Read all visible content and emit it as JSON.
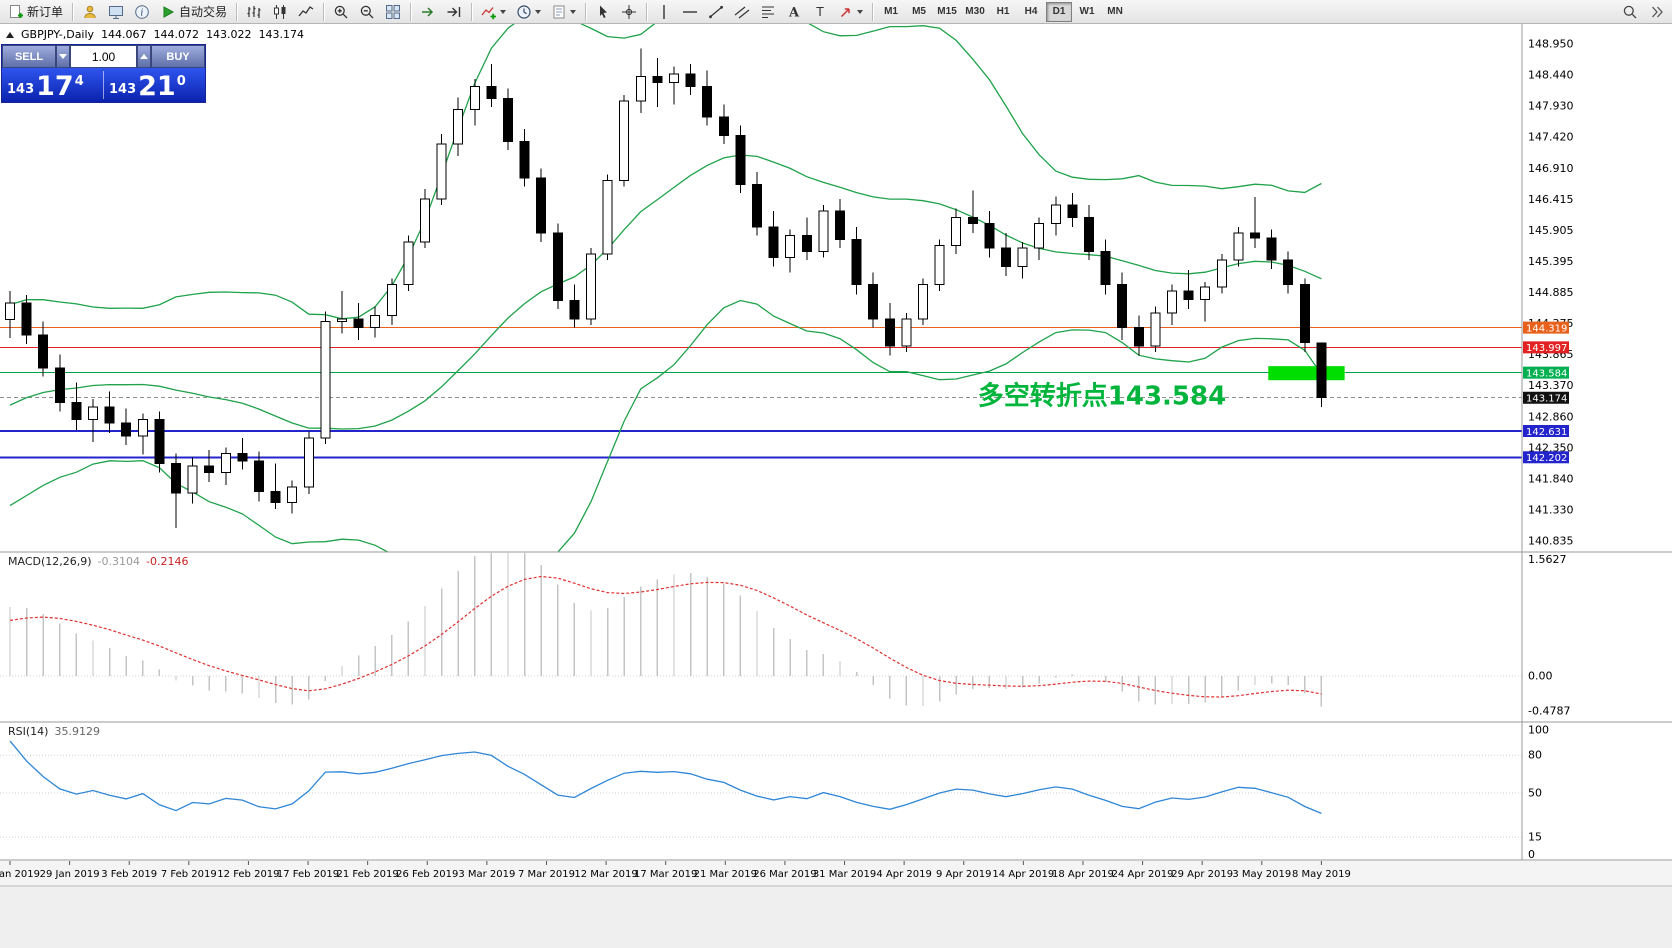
{
  "toolbar": {
    "items": [
      {
        "name": "new-order",
        "label": "新订单"
      },
      {
        "sep": true
      },
      {
        "name": "profiles"
      },
      {
        "name": "market-watch"
      },
      {
        "name": "data-window"
      },
      {
        "name": "autotrading",
        "label": "自动交易"
      },
      {
        "sep": true
      },
      {
        "name": "bar-chart"
      },
      {
        "name": "candle-chart"
      },
      {
        "name": "line-chart"
      },
      {
        "sep": true
      },
      {
        "name": "zoom-in"
      },
      {
        "name": "zoom-out"
      },
      {
        "name": "tile-windows"
      },
      {
        "sep": true
      },
      {
        "name": "auto-scroll"
      },
      {
        "name": "chart-shift"
      },
      {
        "sep": true
      },
      {
        "name": "indicators",
        "caret": true
      },
      {
        "name": "periods",
        "caret": true
      },
      {
        "name": "templates",
        "caret": true
      },
      {
        "sep": true
      },
      {
        "name": "cursor"
      },
      {
        "name": "crosshair"
      },
      {
        "sep": true
      },
      {
        "name": "vertical-line"
      },
      {
        "name": "horizontal-line"
      },
      {
        "name": "trendline"
      },
      {
        "name": "equidistant-channel"
      },
      {
        "name": "fibonacci"
      },
      {
        "name": "text"
      },
      {
        "name": "label"
      },
      {
        "name": "arrows",
        "caret": true
      },
      {
        "sep": true
      }
    ],
    "timeframes": [
      "M1",
      "M5",
      "M15",
      "M30",
      "H1",
      "H4",
      "D1",
      "W1",
      "MN"
    ],
    "active_timeframe": "D1",
    "right_items": [
      {
        "name": "search"
      },
      {
        "name": "expand"
      }
    ]
  },
  "chart": {
    "info": {
      "symbol_period": "GBPJPY-,Daily",
      "open": "144.067",
      "high": "144.072",
      "low": "143.022",
      "close": "143.174"
    },
    "trade_panel": {
      "sell_label": "SELL",
      "buy_label": "BUY",
      "volume": "1.00",
      "bid_prefix": "143",
      "bid_main": "17",
      "bid_pip": "4",
      "ask_prefix": "143",
      "ask_main": "21",
      "ask_pip": "0"
    }
  },
  "chart_data": {
    "type": "candlestick",
    "symbol": "GBPJPY-",
    "timeframe": "Daily",
    "candles": [
      [
        144.45,
        144.92,
        144.15,
        144.72
      ],
      [
        144.72,
        144.85,
        144.05,
        144.2
      ],
      [
        144.2,
        144.42,
        143.52,
        143.66
      ],
      [
        143.66,
        143.88,
        142.95,
        143.1
      ],
      [
        143.1,
        143.42,
        142.65,
        142.82
      ],
      [
        142.82,
        143.15,
        142.45,
        143.02
      ],
      [
        143.02,
        143.28,
        142.6,
        142.76
      ],
      [
        142.76,
        143.0,
        142.4,
        142.55
      ],
      [
        142.55,
        142.92,
        142.25,
        142.82
      ],
      [
        142.82,
        142.95,
        141.95,
        142.1
      ],
      [
        142.1,
        142.26,
        141.05,
        141.62
      ],
      [
        141.62,
        142.2,
        141.45,
        142.06
      ],
      [
        142.06,
        142.32,
        141.8,
        141.95
      ],
      [
        141.95,
        142.36,
        141.75,
        142.26
      ],
      [
        142.26,
        142.52,
        142.0,
        142.14
      ],
      [
        142.14,
        142.3,
        141.48,
        141.64
      ],
      [
        141.64,
        142.1,
        141.36,
        141.46
      ],
      [
        141.46,
        141.82,
        141.28,
        141.72
      ],
      [
        141.72,
        142.62,
        141.6,
        142.52
      ],
      [
        142.52,
        144.58,
        142.42,
        144.42
      ],
      [
        144.42,
        144.92,
        144.22,
        144.46
      ],
      [
        144.46,
        144.72,
        144.12,
        144.32
      ],
      [
        144.32,
        144.66,
        144.16,
        144.52
      ],
      [
        144.52,
        145.12,
        144.36,
        145.02
      ],
      [
        145.02,
        145.82,
        144.92,
        145.72
      ],
      [
        145.72,
        146.58,
        145.62,
        146.42
      ],
      [
        146.42,
        147.48,
        146.32,
        147.32
      ],
      [
        147.32,
        148.08,
        147.12,
        147.88
      ],
      [
        147.88,
        148.38,
        147.62,
        148.26
      ],
      [
        148.26,
        148.62,
        147.92,
        148.06
      ],
      [
        148.06,
        148.22,
        147.22,
        147.36
      ],
      [
        147.36,
        147.56,
        146.62,
        146.76
      ],
      [
        146.76,
        146.92,
        145.72,
        145.86
      ],
      [
        145.86,
        146.02,
        144.62,
        144.76
      ],
      [
        144.76,
        145.02,
        144.32,
        144.46
      ],
      [
        144.46,
        145.62,
        144.36,
        145.52
      ],
      [
        145.52,
        146.82,
        145.42,
        146.72
      ],
      [
        146.72,
        148.12,
        146.62,
        148.02
      ],
      [
        148.02,
        148.88,
        147.82,
        148.42
      ],
      [
        148.42,
        148.72,
        147.92,
        148.32
      ],
      [
        148.32,
        148.58,
        147.96,
        148.46
      ],
      [
        148.46,
        148.62,
        148.12,
        148.26
      ],
      [
        148.26,
        148.52,
        147.62,
        147.76
      ],
      [
        147.76,
        147.96,
        147.32,
        147.46
      ],
      [
        147.46,
        147.62,
        146.52,
        146.66
      ],
      [
        146.66,
        146.86,
        145.82,
        145.96
      ],
      [
        145.96,
        146.22,
        145.32,
        145.46
      ],
      [
        145.46,
        145.92,
        145.22,
        145.82
      ],
      [
        145.82,
        146.12,
        145.42,
        145.56
      ],
      [
        145.56,
        146.32,
        145.46,
        146.22
      ],
      [
        146.22,
        146.42,
        145.62,
        145.76
      ],
      [
        145.76,
        145.96,
        144.86,
        145.02
      ],
      [
        145.02,
        145.22,
        144.32,
        144.46
      ],
      [
        144.46,
        144.72,
        143.86,
        144.02
      ],
      [
        144.02,
        144.56,
        143.92,
        144.46
      ],
      [
        144.46,
        145.12,
        144.36,
        145.02
      ],
      [
        145.02,
        145.76,
        144.92,
        145.66
      ],
      [
        145.66,
        146.26,
        145.52,
        146.12
      ],
      [
        146.12,
        146.56,
        145.86,
        146.02
      ],
      [
        146.02,
        146.22,
        145.46,
        145.62
      ],
      [
        145.62,
        145.86,
        145.16,
        145.32
      ],
      [
        145.32,
        145.72,
        145.12,
        145.62
      ],
      [
        145.62,
        146.12,
        145.42,
        146.02
      ],
      [
        146.02,
        146.46,
        145.82,
        146.32
      ],
      [
        146.32,
        146.52,
        145.96,
        146.12
      ],
      [
        146.12,
        146.32,
        145.42,
        145.56
      ],
      [
        145.56,
        145.76,
        144.86,
        145.02
      ],
      [
        145.02,
        145.22,
        144.12,
        144.32
      ],
      [
        144.32,
        144.52,
        143.86,
        144.02
      ],
      [
        144.02,
        144.66,
        143.92,
        144.56
      ],
      [
        144.56,
        145.02,
        144.36,
        144.92
      ],
      [
        144.92,
        145.26,
        144.62,
        144.78
      ],
      [
        144.78,
        145.06,
        144.42,
        144.98
      ],
      [
        144.98,
        145.52,
        144.88,
        145.42
      ],
      [
        145.42,
        145.96,
        145.32,
        145.86
      ],
      [
        145.86,
        146.45,
        145.62,
        145.78
      ],
      [
        145.78,
        145.92,
        145.28,
        145.42
      ],
      [
        145.42,
        145.56,
        144.88,
        145.02
      ],
      [
        145.02,
        145.12,
        143.92,
        144.08
      ],
      [
        144.067,
        144.072,
        143.022,
        143.174
      ]
    ],
    "warmup_closes": [
      141.1,
      141.25,
      141.4,
      141.3,
      141.55,
      141.7,
      141.85,
      141.75,
      142.0,
      142.15,
      142.3,
      142.2,
      142.45,
      142.6,
      142.75,
      142.65,
      142.9,
      143.05,
      143.2,
      143.1,
      143.35,
      143.55,
      143.75,
      143.95,
      144.2,
      144.45
    ],
    "x_labels": [
      "24 Jan 2019",
      "29 Jan 2019",
      "3 Feb 2019",
      "7 Feb 2019",
      "12 Feb 2019",
      "17 Feb 2019",
      "21 Feb 2019",
      "26 Feb 2019",
      "3 Mar 2019",
      "7 Mar 2019",
      "12 Mar 2019",
      "17 Mar 2019",
      "21 Mar 2019",
      "26 Mar 2019",
      "31 Mar 2019",
      "4 Apr 2019",
      "9 Apr 2019",
      "14 Apr 2019",
      "18 Apr 2019",
      "24 Apr 2019",
      "29 Apr 2019",
      "3 May 2019",
      "8 May 2019"
    ],
    "price_axis_labels": [
      "148.950",
      "148.440",
      "147.930",
      "147.420",
      "146.910",
      "146.415",
      "145.905",
      "145.395",
      "144.885",
      "144.375",
      "143.865",
      "143.370",
      "142.860",
      "142.350",
      "141.840",
      "141.330",
      "140.835"
    ],
    "price_lines": [
      {
        "price": 144.319,
        "label": "144.319",
        "color": "#e8611c",
        "badge_color": "#e8611c",
        "width": 1,
        "style": "solid"
      },
      {
        "price": 143.997,
        "label": "143.997",
        "color": "#e22222",
        "badge_color": "#e22222",
        "width": 1,
        "style": "solid"
      },
      {
        "price": 143.584,
        "label": "143.584",
        "color": "#00a14b",
        "badge_color": "#00b050",
        "width": 1,
        "style": "solid"
      },
      {
        "price": 143.174,
        "label": "143.174",
        "color": "#909090",
        "badge_color": "#111111",
        "width": 1,
        "style": "dash"
      },
      {
        "price": 142.631,
        "label": "142.631",
        "color": "#2424cc",
        "badge_color": "#2424cc",
        "width": 2,
        "style": "solid"
      },
      {
        "price": 142.202,
        "label": "142.202",
        "color": "#2424cc",
        "badge_color": "#2424cc",
        "width": 2,
        "style": "solid"
      }
    ],
    "highlight_zone": {
      "price_top": 143.69,
      "price_bottom": 143.46,
      "from_candle": 75.8,
      "to_candle": 80.4,
      "color": "#00dd00"
    },
    "annotation": {
      "text": "多空转折点143.584",
      "color": "#00b43c",
      "candle": 58.3,
      "price": 143.06,
      "font_size": 26
    },
    "bollinger": {
      "period": 20,
      "deviation": 2,
      "color": "#1fa24a"
    },
    "macd": {
      "name": "MACD(12,26,9)",
      "value": "-0.3104",
      "signal": "-0.2146",
      "hist_color": "#c4c4c4",
      "signal_color": "#e03030",
      "scale_labels": [
        "1.5627",
        "0.00",
        "-0.4787"
      ]
    },
    "rsi": {
      "name": "RSI(14)",
      "value": "35.9129",
      "color": "#2f86d6",
      "scale_labels": [
        {
          "text": "100",
          "v": 100
        },
        {
          "text": "80",
          "v": 80
        },
        {
          "text": "50",
          "v": 50
        },
        {
          "text": "15",
          "v": 15
        },
        {
          "text": "0",
          "v": 0
        }
      ],
      "levels": [
        80,
        50,
        15
      ]
    }
  }
}
